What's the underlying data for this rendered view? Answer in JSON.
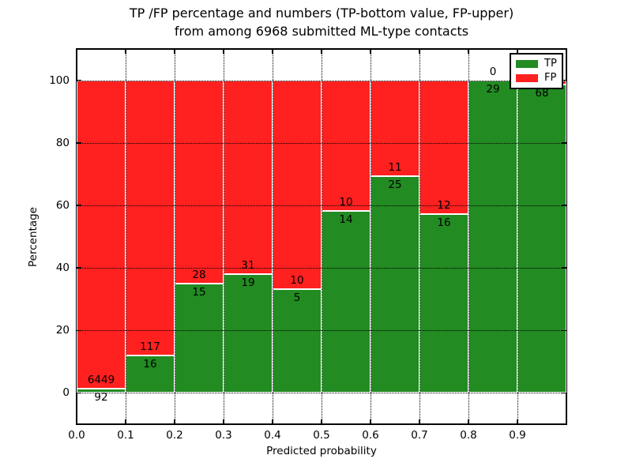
{
  "figure": {
    "title_line1": "TP /FP percentage and numbers (TP-bottom value, FP-upper)",
    "title_line2": "from among 6968 submitted ML-type contacts",
    "background": "#ffffff"
  },
  "axes": {
    "xlabel": "Predicted probability",
    "ylabel": "Percentage",
    "ytick_values": [
      0,
      20,
      40,
      60,
      80,
      100
    ],
    "ytick_labels": [
      "0",
      "20",
      "40",
      "60",
      "80",
      "100"
    ],
    "xtick_values": [
      0.0,
      0.1,
      0.2,
      0.3,
      0.4,
      0.5,
      0.6,
      0.7,
      0.8,
      0.9
    ],
    "xtick_labels": [
      "0.0",
      "0.1",
      "0.2",
      "0.3",
      "0.4",
      "0.5",
      "0.6",
      "0.7",
      "0.8",
      "0.9"
    ]
  },
  "legend": {
    "position": "upper right",
    "items": [
      {
        "label": "TP",
        "color": "#228B22"
      },
      {
        "label": "FP",
        "color": "#FF2020"
      }
    ]
  },
  "chart_data": {
    "type": "bar",
    "subtype": "stacked-percentage",
    "title": "TP /FP percentage and numbers (TP-bottom value, FP-upper) from among 6968 submitted ML-type contacts",
    "xlabel": "Predicted probability",
    "ylabel": "Percentage",
    "xlim": [
      0,
      1
    ],
    "ylim": [
      -10,
      110
    ],
    "grid": true,
    "legend_position": "upper right",
    "bin_edges": [
      0.0,
      0.1,
      0.2,
      0.3,
      0.4,
      0.5,
      0.6,
      0.7,
      0.8,
      0.9,
      1.0
    ],
    "series": [
      {
        "name": "TP",
        "color": "#228B22",
        "counts": [
          92,
          16,
          15,
          19,
          5,
          14,
          25,
          16,
          29,
          68
        ],
        "pct": [
          1.4,
          12.0,
          34.9,
          38.0,
          33.3,
          58.3,
          69.4,
          57.1,
          100.0,
          98.6
        ]
      },
      {
        "name": "FP",
        "color": "#FF2020",
        "counts": [
          6449,
          117,
          28,
          31,
          10,
          10,
          11,
          12,
          0,
          null
        ],
        "pct": [
          98.6,
          88.0,
          65.1,
          62.0,
          66.7,
          41.7,
          30.6,
          42.9,
          0.0,
          1.4
        ]
      }
    ]
  }
}
